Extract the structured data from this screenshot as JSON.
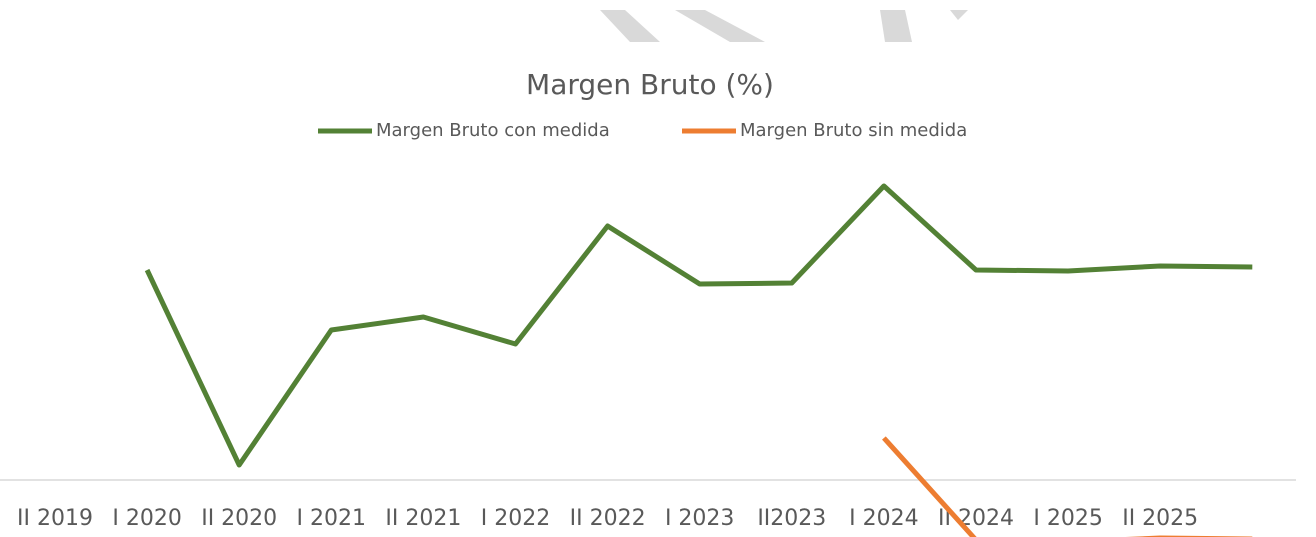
{
  "chart_data": {
    "type": "line",
    "title": "Margen Bruto (%)",
    "categories": [
      "II 2019",
      "I 2020",
      "II 2020",
      "I 2021",
      "II 2021",
      "I 2022",
      "II 2022",
      "I 2023",
      "II2023",
      "I 2024",
      "II 2024",
      "I 2025",
      "II 2025",
      null
    ],
    "series": [
      {
        "name": "Margen Bruto con medida",
        "color": "#538135",
        "values": [
          null,
          21,
          1.5,
          15,
          16.3,
          13.6,
          25.4,
          19.6,
          19.7,
          29.4,
          21,
          20.9,
          21.4,
          21.3
        ]
      },
      {
        "name": "Margen Bruto sin medida",
        "color": "#ed7d31",
        "values": [
          null,
          null,
          null,
          null,
          null,
          null,
          null,
          null,
          null,
          4.2,
          -6,
          -6.2,
          -5.8,
          -5.9
        ]
      }
    ],
    "ylim": [
      -6,
      32
    ],
    "legend": "top"
  }
}
